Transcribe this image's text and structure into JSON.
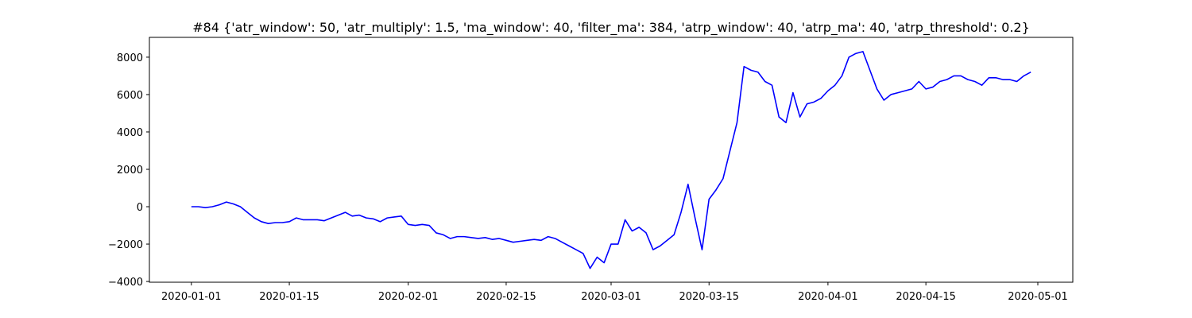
{
  "chart_data": {
    "type": "line",
    "title": "#84 {'atr_window': 50, 'atr_multiply': 1.5, 'ma_window': 40, 'filter_ma': 384, 'atrp_window': 40, 'atrp_ma': 40, 'atrp_threshold': 0.2}",
    "x": [
      "2020-01-01",
      "2020-01-02",
      "2020-01-03",
      "2020-01-04",
      "2020-01-05",
      "2020-01-06",
      "2020-01-07",
      "2020-01-08",
      "2020-01-09",
      "2020-01-10",
      "2020-01-11",
      "2020-01-12",
      "2020-01-13",
      "2020-01-14",
      "2020-01-15",
      "2020-01-16",
      "2020-01-17",
      "2020-01-18",
      "2020-01-19",
      "2020-01-20",
      "2020-01-21",
      "2020-01-22",
      "2020-01-23",
      "2020-01-24",
      "2020-01-25",
      "2020-01-26",
      "2020-01-27",
      "2020-01-28",
      "2020-01-29",
      "2020-01-30",
      "2020-01-31",
      "2020-02-01",
      "2020-02-02",
      "2020-02-03",
      "2020-02-04",
      "2020-02-05",
      "2020-02-06",
      "2020-02-07",
      "2020-02-08",
      "2020-02-09",
      "2020-02-10",
      "2020-02-11",
      "2020-02-12",
      "2020-02-13",
      "2020-02-14",
      "2020-02-15",
      "2020-02-16",
      "2020-02-17",
      "2020-02-18",
      "2020-02-19",
      "2020-02-20",
      "2020-02-21",
      "2020-02-22",
      "2020-02-23",
      "2020-02-24",
      "2020-02-25",
      "2020-02-26",
      "2020-02-27",
      "2020-02-28",
      "2020-02-29",
      "2020-03-01",
      "2020-03-02",
      "2020-03-03",
      "2020-03-04",
      "2020-03-05",
      "2020-03-06",
      "2020-03-07",
      "2020-03-08",
      "2020-03-09",
      "2020-03-10",
      "2020-03-11",
      "2020-03-12",
      "2020-03-13",
      "2020-03-14",
      "2020-03-15",
      "2020-03-16",
      "2020-03-17",
      "2020-03-18",
      "2020-03-19",
      "2020-03-20",
      "2020-03-21",
      "2020-03-22",
      "2020-03-23",
      "2020-03-24",
      "2020-03-25",
      "2020-03-26",
      "2020-03-27",
      "2020-03-28",
      "2020-03-29",
      "2020-03-30",
      "2020-03-31",
      "2020-04-01",
      "2020-04-02",
      "2020-04-03",
      "2020-04-04",
      "2020-04-05",
      "2020-04-06",
      "2020-04-07",
      "2020-04-08",
      "2020-04-09",
      "2020-04-10",
      "2020-04-11",
      "2020-04-12",
      "2020-04-13",
      "2020-04-14",
      "2020-04-15",
      "2020-04-16",
      "2020-04-17",
      "2020-04-18",
      "2020-04-19",
      "2020-04-20",
      "2020-04-21",
      "2020-04-22",
      "2020-04-23",
      "2020-04-24",
      "2020-04-25",
      "2020-04-26",
      "2020-04-27",
      "2020-04-28",
      "2020-04-29",
      "2020-04-30"
    ],
    "values": [
      0,
      0,
      -50,
      0,
      100,
      250,
      150,
      0,
      -300,
      -600,
      -800,
      -900,
      -850,
      -850,
      -800,
      -600,
      -700,
      -700,
      -700,
      -750,
      -600,
      -450,
      -300,
      -500,
      -450,
      -600,
      -650,
      -800,
      -600,
      -550,
      -500,
      -950,
      -1000,
      -950,
      -1000,
      -1400,
      -1500,
      -1700,
      -1600,
      -1600,
      -1650,
      -1700,
      -1650,
      -1750,
      -1700,
      -1800,
      -1900,
      -1850,
      -1800,
      -1750,
      -1800,
      -1600,
      -1700,
      -1900,
      -2100,
      -2300,
      -2500,
      -3300,
      -2700,
      -3000,
      -2000,
      -2000,
      -700,
      -1300,
      -1100,
      -1400,
      -2300,
      -2100,
      -1800,
      -1500,
      -300,
      1200,
      -600,
      -2300,
      400,
      900,
      1500,
      3000,
      4500,
      7500,
      7300,
      7200,
      6700,
      6500,
      4800,
      4500,
      6100,
      4800,
      5500,
      5600,
      5800,
      6200,
      6500,
      7000,
      8000,
      8200,
      8300,
      7300,
      6300,
      5700,
      6000,
      6100,
      6200,
      6300,
      6700,
      6300,
      6400,
      6700,
      6800,
      7000,
      7000,
      6800,
      6700,
      6500,
      6900,
      6900,
      6800,
      6800,
      6700,
      7000,
      7200
    ],
    "color": "#0000ff",
    "xlim": [
      "2019-12-26",
      "2020-05-06"
    ],
    "xticks": [
      "2020-01-01",
      "2020-01-15",
      "2020-02-01",
      "2020-02-15",
      "2020-03-01",
      "2020-03-15",
      "2020-04-01",
      "2020-04-15",
      "2020-05-01"
    ],
    "ylim": [
      -4040,
      9060
    ],
    "yticks": [
      {
        "value": -4000,
        "label": "−4000"
      },
      {
        "value": -2000,
        "label": "−2000"
      },
      0,
      2000,
      4000,
      6000,
      8000
    ]
  }
}
